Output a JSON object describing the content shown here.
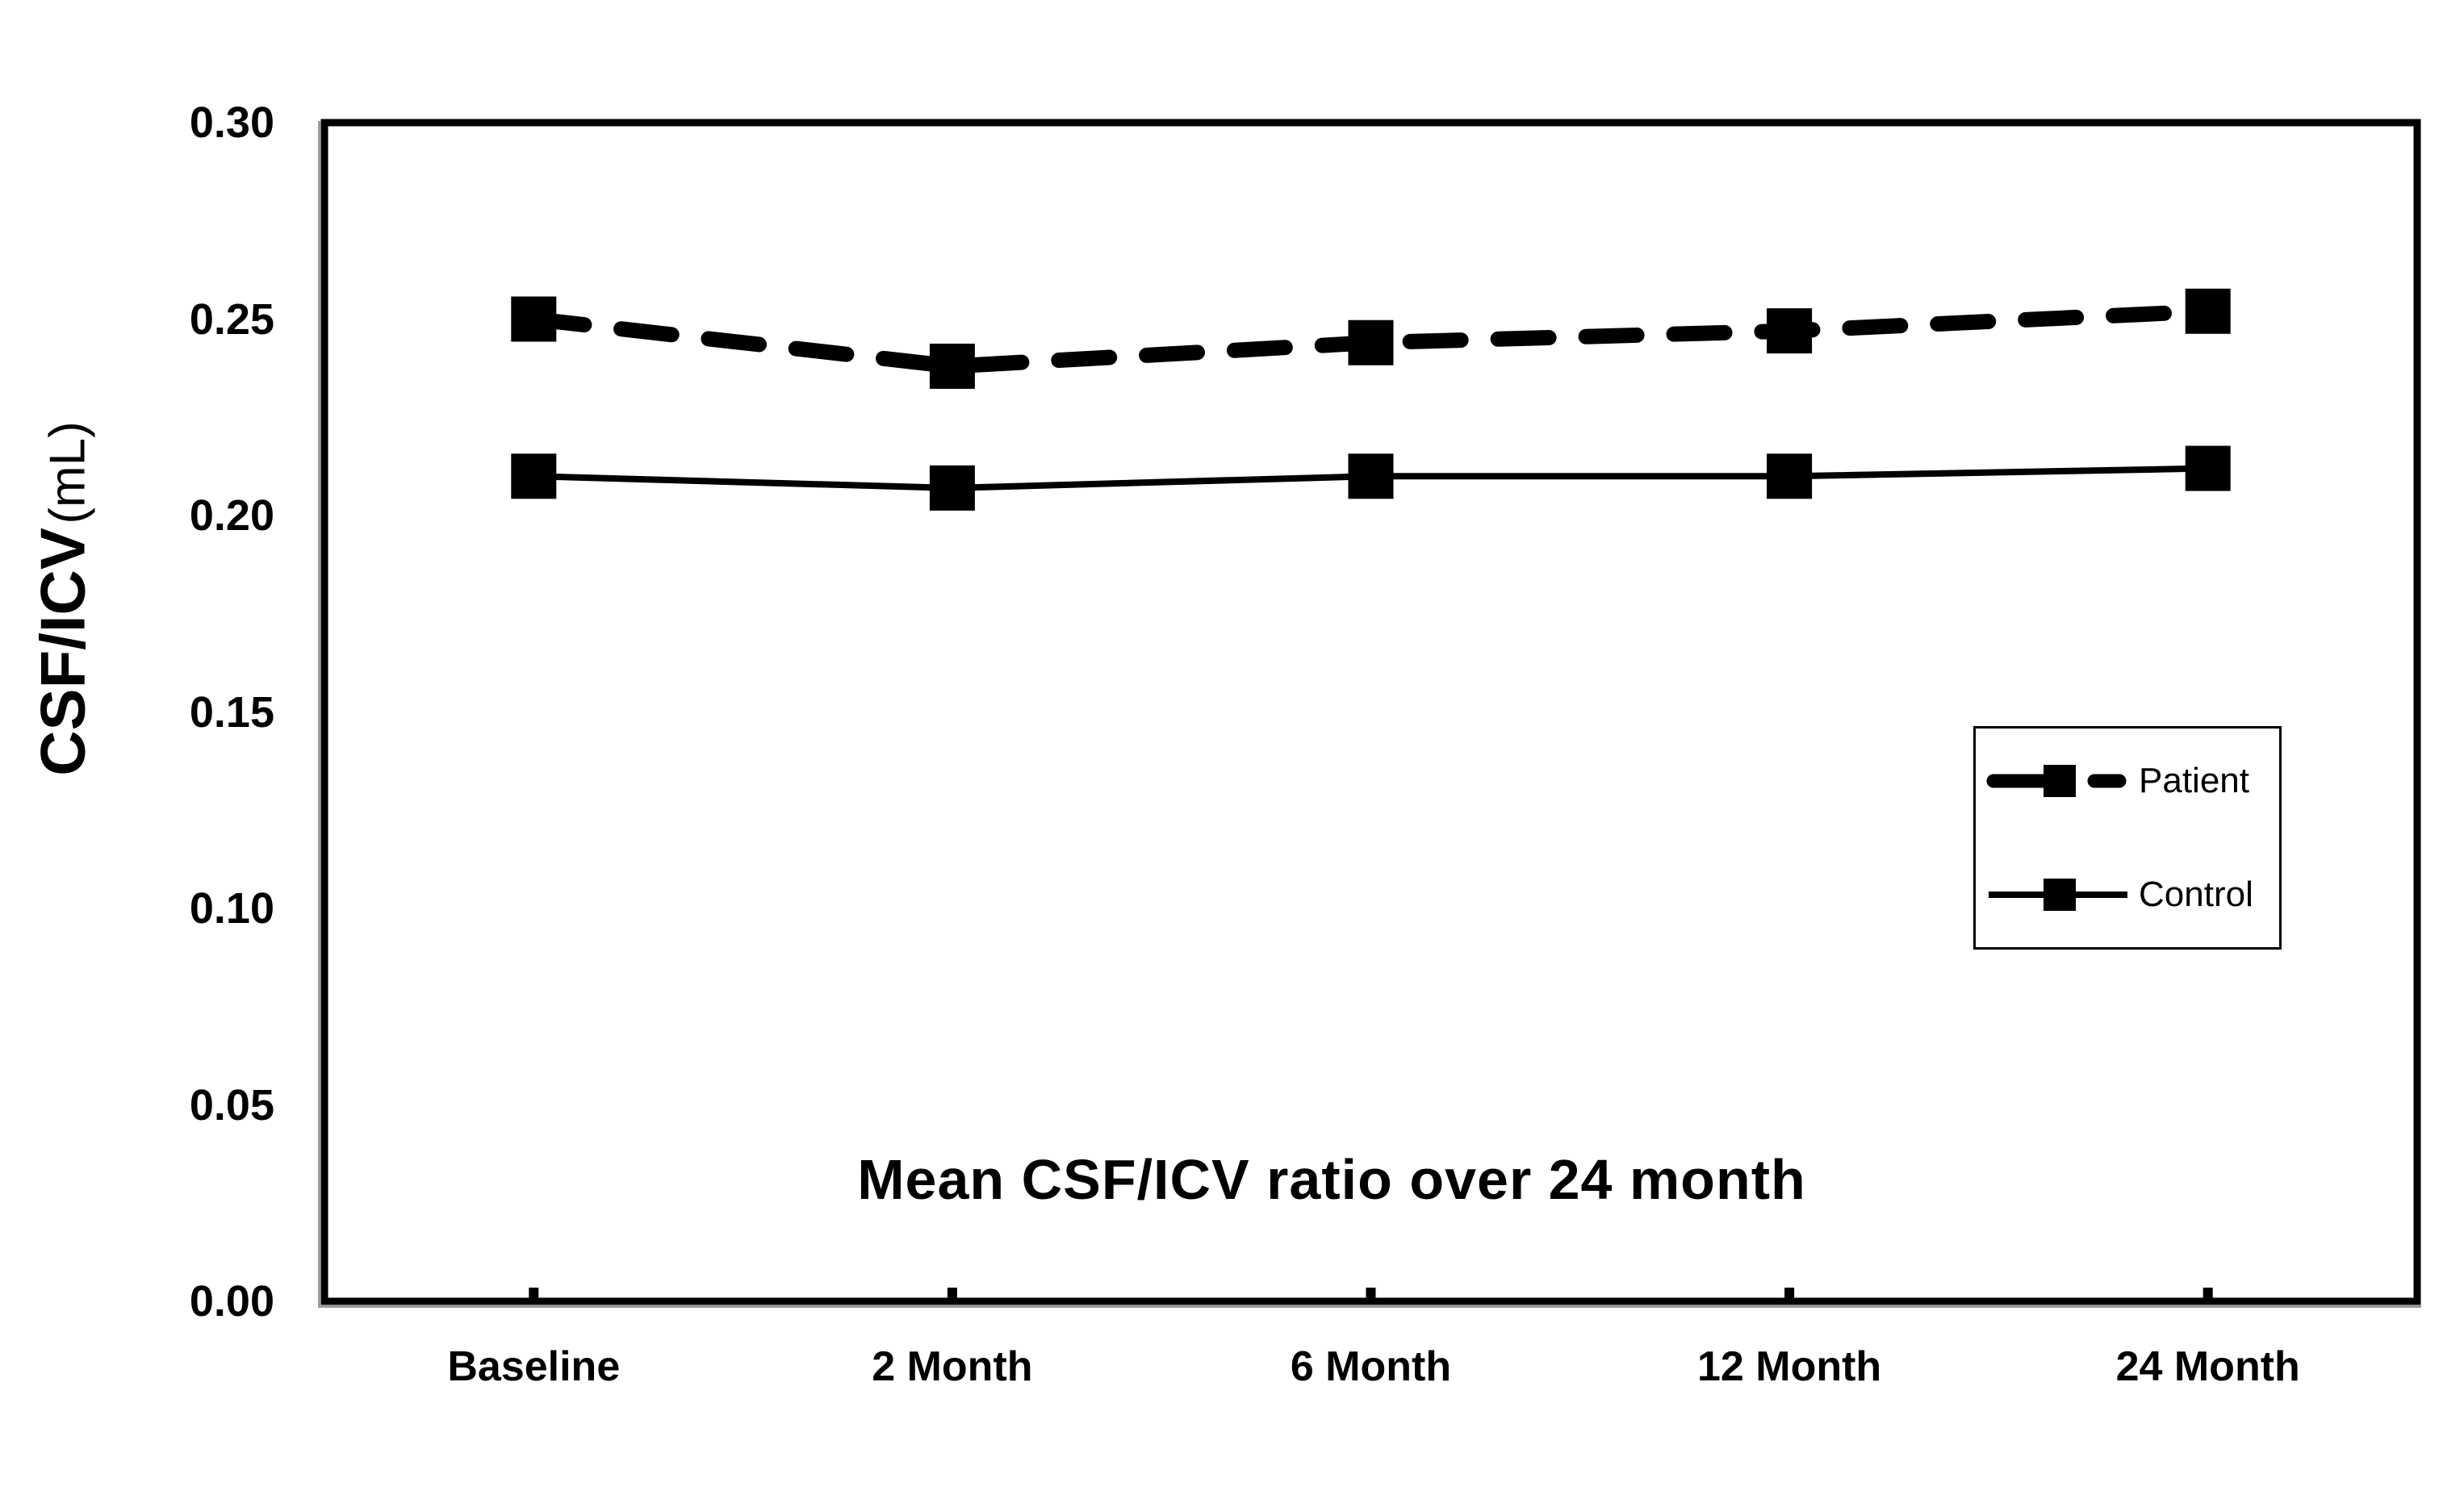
{
  "figure": {
    "background": "#ffffff",
    "ink_color": "#000000",
    "axis_shadow_color": "#9a9a9a"
  },
  "y_axis": {
    "title_main": "CSF/ICV",
    "title_unit": "(mL)"
  },
  "chart_data": {
    "type": "line",
    "title": "Mean CSF/ICV ratio over 24 month",
    "xlabel": "",
    "ylabel": "CSF/ICV (mL)",
    "categories": [
      "Baseline",
      "2 Month",
      "6 Month",
      "12 Month",
      "24 Month"
    ],
    "series": [
      {
        "name": "Patient",
        "line_style": "dashed",
        "marker": "square",
        "values": [
          0.25,
          0.238,
          0.244,
          0.247,
          0.252
        ]
      },
      {
        "name": "Control",
        "line_style": "solid",
        "marker": "square",
        "values": [
          0.21,
          0.207,
          0.21,
          0.21,
          0.212
        ]
      }
    ],
    "ylim": [
      0.0,
      0.3
    ],
    "ytick_labels": [
      "0.30",
      "0.25",
      "0.20",
      "0.15",
      "0.10",
      "0.05",
      "0.00"
    ],
    "ytick_values": [
      0.3,
      0.25,
      0.2,
      0.15,
      0.1,
      0.05,
      0.0
    ],
    "grid": false,
    "legend_position": "right-middle",
    "series_color": "#000000"
  }
}
